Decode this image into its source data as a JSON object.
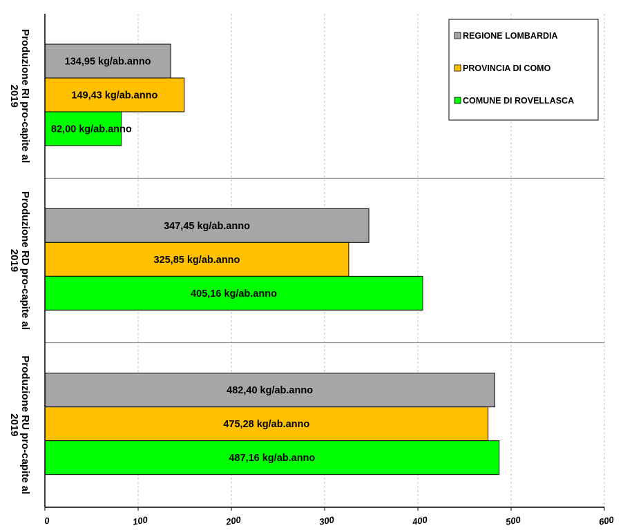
{
  "chart_data": {
    "type": "bar",
    "orientation": "horizontal",
    "categories": [
      [
        "Produzione RI pro-capite al",
        "2019"
      ],
      [
        "Produzione RD pro-capite al",
        "2019"
      ],
      [
        "Produzione RU pro-capite al",
        "2019"
      ]
    ],
    "series": [
      {
        "name": "REGIONE LOMBARDIA",
        "color": "#a6a6a6",
        "values": [
          134.95,
          347.45,
          482.4
        ],
        "labels": [
          "134,95 kg/ab.anno",
          "347,45 kg/ab.anno",
          "482,40 kg/ab.anno"
        ]
      },
      {
        "name": "PROVINCIA DI COMO",
        "color": "#ffc000",
        "values": [
          149.43,
          325.85,
          475.28
        ],
        "labels": [
          "149,43 kg/ab.anno",
          "325,85 kg/ab.anno",
          "475,28 kg/ab.anno"
        ]
      },
      {
        "name": "COMUNE DI ROVELLASCA",
        "color": "#00ff00",
        "values": [
          82.0,
          405.16,
          487.16
        ],
        "labels": [
          "82,00 kg/ab.anno",
          "405,16 kg/ab.anno",
          "487,16 kg/ab.anno"
        ]
      }
    ],
    "xlim": [
      0,
      600
    ],
    "xticks": [
      0,
      100,
      200,
      300,
      400,
      500,
      600
    ],
    "grid": "vertical dashed",
    "legend_position": "top-right"
  }
}
